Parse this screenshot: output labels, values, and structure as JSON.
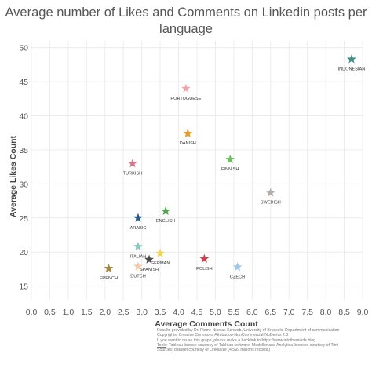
{
  "title_lines": [
    "Average number of Likes and Comments on Linkedin posts per",
    "language"
  ],
  "credits": [
    "Results provided by Dr. Pierre-Nicolas Schwab, University of Brussels, Department of communication",
    {
      "label": "Copyrights",
      "text": ": Creative Commons Attribution-NonCommercial-NoDerivs 2.0"
    },
    "If you want to reuse this graph, please make a backlink to https://www.intotheminds.blog",
    {
      "label": "Tools",
      "text": ": Tableau license courtesy of Tableau software, Modeller and Analytica licenses courtesy of Timi"
    },
    {
      "label": "Sources",
      "text": ": dataset courtesy of Linkalyze (4.599 millions records)"
    }
  ],
  "chart_data": {
    "type": "scatter",
    "title": "Average number of Likes and Comments on Linkedin posts per language",
    "xlabel": "Average Comments Count",
    "ylabel": "Average Likes Count",
    "xlim": [
      0,
      9
    ],
    "ylim": [
      13,
      51
    ],
    "xticks": [
      0,
      0.5,
      1,
      1.5,
      2,
      2.5,
      3,
      3.5,
      4,
      4.5,
      5,
      5.5,
      6,
      6.5,
      7,
      7.5,
      8,
      8.5,
      9
    ],
    "xtick_labels": [
      "0,0",
      "0,5",
      "1,0",
      "1,5",
      "2,0",
      "2,5",
      "3,0",
      "3,5",
      "4,0",
      "4,5",
      "5,0",
      "5,5",
      "6,0",
      "6,5",
      "7,0",
      "7,5",
      "8,0",
      "8,5",
      "9,0"
    ],
    "yticks": [
      15,
      20,
      25,
      30,
      35,
      40,
      45,
      50
    ],
    "ytick_labels": [
      "15",
      "20",
      "25",
      "30",
      "35",
      "40",
      "45",
      "50"
    ],
    "grid": true,
    "marker": "star",
    "points": [
      {
        "label": "INDONESIAN",
        "x": 8.7,
        "y": 48.3,
        "color": "#3e8f89"
      },
      {
        "label": "PORTUGUESE",
        "x": 4.2,
        "y": 44.0,
        "color": "#f5a3a8"
      },
      {
        "label": "DANISH",
        "x": 4.25,
        "y": 37.4,
        "color": "#e89a27"
      },
      {
        "label": "FINNISH",
        "x": 5.4,
        "y": 33.6,
        "color": "#6dbf5c"
      },
      {
        "label": "TURKISH",
        "x": 2.75,
        "y": 33.0,
        "color": "#d8748a"
      },
      {
        "label": "SWEDISH",
        "x": 6.5,
        "y": 28.7,
        "color": "#b2adaa"
      },
      {
        "label": "ENGLISH",
        "x": 3.65,
        "y": 26.0,
        "color": "#51a34f"
      },
      {
        "label": "ARABIC",
        "x": 2.9,
        "y": 25.0,
        "color": "#2d5a8c"
      },
      {
        "label": "ITALIAN",
        "x": 2.9,
        "y": 20.8,
        "color": "#8dc7c1"
      },
      {
        "label": "GERMAN",
        "x": 3.5,
        "y": 19.8,
        "color": "#f3d34a"
      },
      {
        "label": "SPANISH",
        "x": 3.2,
        "y": 18.9,
        "color": "#4a4a4a"
      },
      {
        "label": "POLISH",
        "x": 4.7,
        "y": 19.0,
        "color": "#c8434d"
      },
      {
        "label": "DUTCH",
        "x": 2.9,
        "y": 17.9,
        "color": "#f6c9a3"
      },
      {
        "label": "FRENCH",
        "x": 2.1,
        "y": 17.6,
        "color": "#a5863e"
      },
      {
        "label": "CZECH",
        "x": 5.6,
        "y": 17.8,
        "color": "#9ec7e8"
      }
    ]
  }
}
